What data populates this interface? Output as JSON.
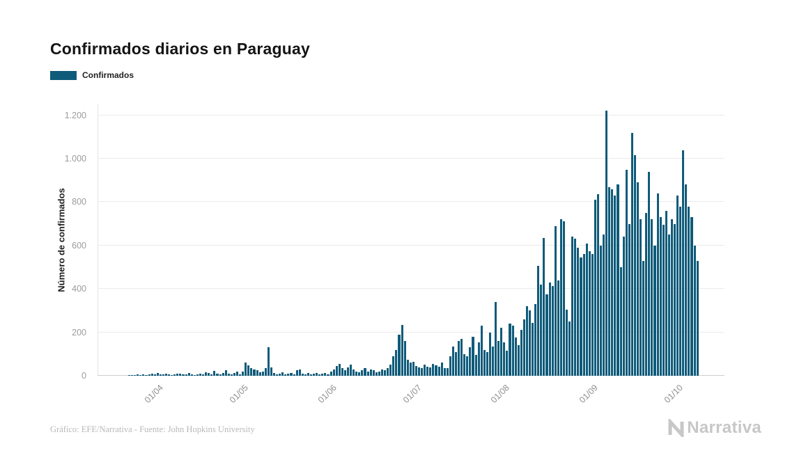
{
  "title": "Confirmados diarios en Paraguay",
  "legend": {
    "label": "Confirmados",
    "color": "#0f5b7a"
  },
  "footer": {
    "credit": "Gráfico: EFE/Narrativa - Fuente: John Hopkins University"
  },
  "branding": {
    "name": "Narrativa"
  },
  "chart_data": {
    "type": "bar",
    "title": "Confirmados diarios en Paraguay",
    "series_name": "Confirmados",
    "xlabel": "",
    "ylabel": "Número de confirmados",
    "ylim": [
      0,
      1250
    ],
    "grid": true,
    "legend_position": "top-left",
    "bar_color": "#0f5b7a",
    "yticks": [
      {
        "value": 0,
        "label": "0"
      },
      {
        "value": 200,
        "label": "200"
      },
      {
        "value": 400,
        "label": "400"
      },
      {
        "value": 600,
        "label": "600"
      },
      {
        "value": 800,
        "label": "800"
      },
      {
        "value": 1000,
        "label": "1.000"
      },
      {
        "value": 1200,
        "label": "1.200"
      }
    ],
    "xticks": [
      {
        "index": 10,
        "label": "01/04"
      },
      {
        "index": 40,
        "label": "01/05"
      },
      {
        "index": 71,
        "label": "01/06"
      },
      {
        "index": 101,
        "label": "01/07"
      },
      {
        "index": 132,
        "label": "01/08"
      },
      {
        "index": 163,
        "label": "01/09"
      },
      {
        "index": 193,
        "label": "01/10"
      }
    ],
    "values": [
      2,
      3,
      2,
      5,
      4,
      6,
      3,
      8,
      10,
      6,
      12,
      8,
      5,
      10,
      7,
      4,
      6,
      9,
      11,
      5,
      8,
      13,
      6,
      4,
      7,
      10,
      5,
      15,
      12,
      6,
      22,
      9,
      5,
      14,
      25,
      10,
      7,
      12,
      18,
      8,
      18,
      62,
      48,
      35,
      30,
      25,
      15,
      20,
      35,
      130,
      40,
      12,
      8,
      10,
      15,
      6,
      9,
      12,
      8,
      25,
      30,
      10,
      8,
      12,
      6,
      9,
      14,
      8,
      10,
      12,
      7,
      20,
      30,
      45,
      55,
      35,
      25,
      40,
      50,
      30,
      20,
      15,
      25,
      35,
      20,
      30,
      25,
      15,
      20,
      30,
      25,
      35,
      50,
      90,
      120,
      190,
      235,
      160,
      75,
      60,
      65,
      45,
      40,
      35,
      50,
      42,
      38,
      55,
      48,
      42,
      60,
      35,
      35,
      90,
      135,
      110,
      160,
      170,
      100,
      90,
      130,
      180,
      95,
      155,
      230,
      120,
      110,
      200,
      135,
      340,
      160,
      220,
      155,
      115,
      240,
      230,
      175,
      140,
      210,
      260,
      320,
      300,
      245,
      330,
      505,
      420,
      635,
      375,
      430,
      415,
      690,
      440,
      720,
      710,
      305,
      250,
      640,
      630,
      590,
      545,
      560,
      610,
      575,
      560,
      810,
      835,
      600,
      650,
      1220,
      870,
      860,
      830,
      880,
      500,
      640,
      950,
      700,
      1120,
      1015,
      890,
      720,
      530,
      750,
      940,
      720,
      600,
      840,
      730,
      695,
      760,
      650,
      720,
      700,
      830,
      780,
      1040,
      880,
      780,
      730,
      600,
      530
    ]
  }
}
